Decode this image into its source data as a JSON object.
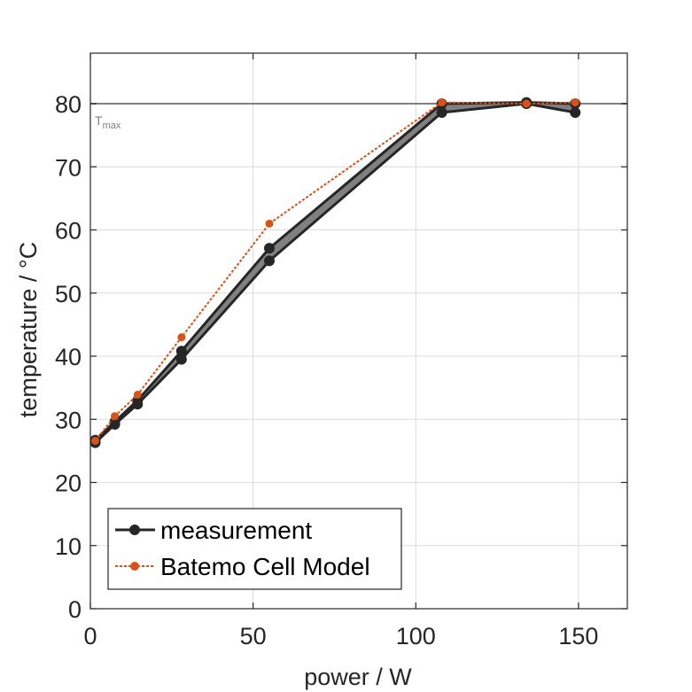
{
  "chart_data": {
    "type": "line",
    "title": "",
    "xlabel": "power / W",
    "ylabel": "temperature / °C",
    "xlim": [
      0,
      165
    ],
    "ylim": [
      0,
      88
    ],
    "xticks": [
      0,
      50,
      100,
      150
    ],
    "yticks": [
      0,
      10,
      20,
      30,
      40,
      50,
      60,
      70,
      80
    ],
    "grid": true,
    "legend_position": "bottom-left",
    "colors": {
      "measurement": "#262626",
      "band_fill": "#808080",
      "model": "#d95319",
      "reference": "#808080",
      "grid": "#dcdcdc",
      "axes": "#262626"
    },
    "reference_line": {
      "y": 80,
      "label": "T",
      "label_sub": "max"
    },
    "measurement_band": {
      "x": [
        1.5,
        7.5,
        14.5,
        28,
        55,
        108,
        134,
        149
      ],
      "upper": [
        26.7,
        29.6,
        33.0,
        40.8,
        57.1,
        80.0,
        80.2,
        80.0
      ],
      "lower": [
        26.3,
        29.2,
        32.4,
        39.5,
        55.1,
        78.6,
        80.0,
        78.6
      ]
    },
    "series": [
      {
        "name": "measurement",
        "x": [
          1.5,
          7.5,
          14.5,
          28,
          55,
          108,
          134,
          149
        ],
        "y": [
          26.3,
          29.2,
          32.4,
          39.5,
          55.1,
          78.6,
          80.0,
          78.6
        ],
        "style": "solid",
        "marker": "circle"
      },
      {
        "name": "Batemo Cell Model",
        "x": [
          1.5,
          7.5,
          14.5,
          28,
          55,
          108,
          134,
          149
        ],
        "y": [
          26.6,
          30.5,
          33.9,
          43.0,
          61.0,
          80.2,
          80.0,
          80.2
        ],
        "style": "dotted",
        "marker": "circle"
      }
    ]
  }
}
